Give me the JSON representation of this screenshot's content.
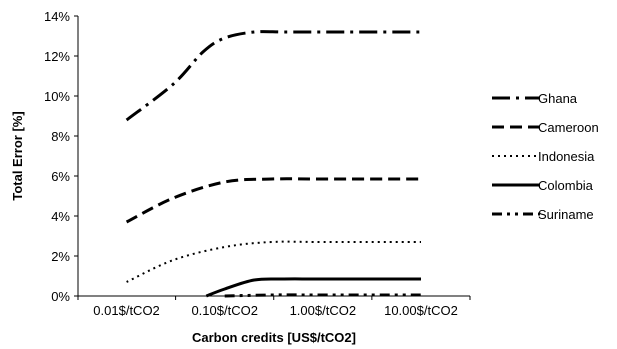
{
  "chart_data": {
    "type": "line",
    "xlabel": "Carbon credits [US$/tCO2]",
    "ylabel": "Total Error [%]",
    "x": [
      0.01,
      0.1,
      1,
      10
    ],
    "x_tick_labels": [
      "0.01$/tCO2",
      "0.10$/tCO2",
      "1.00$/tCO2",
      "10.00$/tCO2"
    ],
    "x_scale": "log",
    "xlim": [
      0.0032,
      31.6
    ],
    "ylim": [
      0,
      14
    ],
    "y_ticks": [
      0,
      2,
      4,
      6,
      8,
      10,
      12,
      14
    ],
    "y_tick_labels": [
      "0%",
      "2%",
      "4%",
      "6%",
      "8%",
      "10%",
      "12%",
      "14%"
    ],
    "grid": false,
    "legend_position": "right",
    "series": [
      {
        "name": "Ghana",
        "style": "long-dash-dot",
        "color": "#000000",
        "x": [
          0.01,
          0.03,
          0.06,
          0.1,
          0.2,
          0.4,
          1,
          3,
          10
        ],
        "y": [
          8.8,
          10.6,
          12.2,
          12.9,
          13.2,
          13.2,
          13.2,
          13.2,
          13.2
        ]
      },
      {
        "name": "Cameroon",
        "style": "dashed",
        "color": "#000000",
        "x": [
          0.01,
          0.03,
          0.1,
          0.3,
          1,
          10
        ],
        "y": [
          3.7,
          4.9,
          5.7,
          5.85,
          5.85,
          5.85
        ]
      },
      {
        "name": "Indonesia",
        "style": "dotted",
        "color": "#000000",
        "x": [
          0.01,
          0.03,
          0.1,
          0.3,
          1,
          10
        ],
        "y": [
          0.7,
          1.8,
          2.45,
          2.7,
          2.7,
          2.7
        ]
      },
      {
        "name": "Colombia",
        "style": "solid",
        "color": "#000000",
        "x": [
          0.065,
          0.1,
          0.2,
          0.4,
          1,
          10
        ],
        "y": [
          0.0,
          0.35,
          0.8,
          0.85,
          0.85,
          0.85
        ]
      },
      {
        "name": "Suriname",
        "style": "dash-dot-dot",
        "color": "#000000",
        "x": [
          0.1,
          0.3,
          1,
          10
        ],
        "y": [
          0.0,
          0.05,
          0.05,
          0.05
        ]
      }
    ]
  }
}
